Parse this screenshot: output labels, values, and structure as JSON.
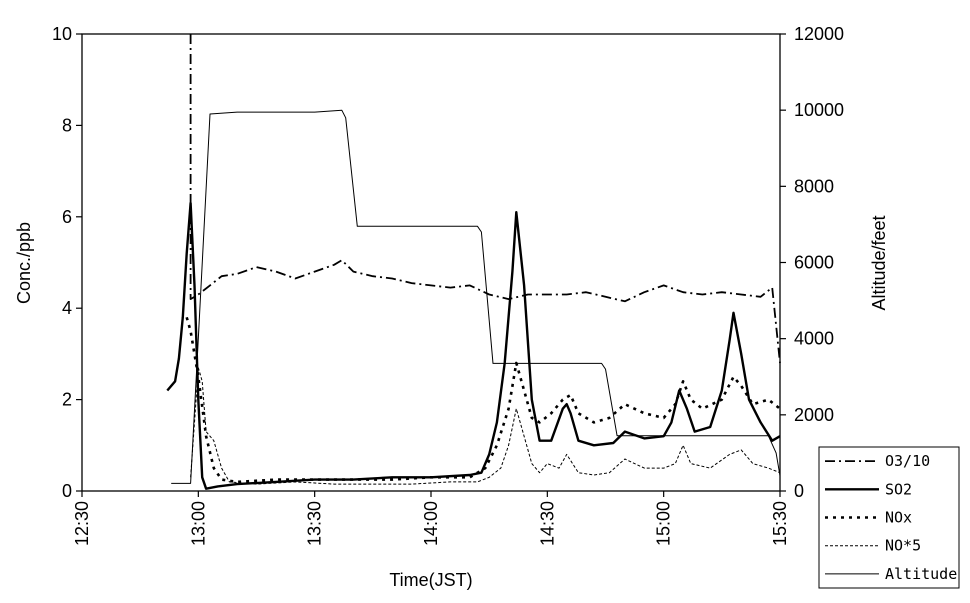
{
  "chart_data": {
    "type": "line",
    "xlabel": "Time(JST)",
    "ylabel_left": "Conc./ppb",
    "ylabel_right": "Altitude/feet",
    "x_range": [
      "12:30",
      "15:30"
    ],
    "y_left_range": [
      0,
      10
    ],
    "y_right_range": [
      0,
      12000
    ],
    "x_ticks": [
      "12:30",
      "13:00",
      "13:30",
      "14:00",
      "14:30",
      "15:00",
      "15:30"
    ],
    "y_left_ticks": [
      "0",
      "2",
      "4",
      "6",
      "8",
      "10"
    ],
    "y_right_ticks": [
      "0",
      "2000",
      "4000",
      "6000",
      "8000",
      "10000",
      "12000"
    ],
    "grid": false,
    "legend_position": "bottom-right outside",
    "series": [
      {
        "name": "O3/10",
        "axis": "left",
        "style": "dash-dot",
        "color": "#000000",
        "points": [
          [
            "12:58",
            10.0
          ],
          [
            "12:58",
            4.2
          ],
          [
            "13:00",
            4.3
          ],
          [
            "13:03",
            4.5
          ],
          [
            "13:06",
            4.7
          ],
          [
            "13:10",
            4.75
          ],
          [
            "13:15",
            4.9
          ],
          [
            "13:20",
            4.8
          ],
          [
            "13:25",
            4.65
          ],
          [
            "13:30",
            4.8
          ],
          [
            "13:35",
            4.95
          ],
          [
            "13:37",
            5.05
          ],
          [
            "13:40",
            4.8
          ],
          [
            "13:45",
            4.7
          ],
          [
            "13:50",
            4.65
          ],
          [
            "13:55",
            4.55
          ],
          [
            "14:00",
            4.5
          ],
          [
            "14:05",
            4.45
          ],
          [
            "14:10",
            4.5
          ],
          [
            "14:15",
            4.3
          ],
          [
            "14:20",
            4.2
          ],
          [
            "14:25",
            4.3
          ],
          [
            "14:30",
            4.3
          ],
          [
            "14:35",
            4.3
          ],
          [
            "14:40",
            4.35
          ],
          [
            "14:45",
            4.25
          ],
          [
            "14:50",
            4.15
          ],
          [
            "14:55",
            4.35
          ],
          [
            "15:00",
            4.5
          ],
          [
            "15:05",
            4.35
          ],
          [
            "15:10",
            4.3
          ],
          [
            "15:15",
            4.35
          ],
          [
            "15:20",
            4.3
          ],
          [
            "15:25",
            4.25
          ],
          [
            "15:28",
            4.45
          ],
          [
            "15:30",
            2.8
          ]
        ]
      },
      {
        "name": "SO2",
        "axis": "left",
        "style": "solid-thick",
        "color": "#000000",
        "points": [
          [
            "12:52",
            2.2
          ],
          [
            "12:54",
            2.4
          ],
          [
            "12:55",
            2.9
          ],
          [
            "12:56",
            3.8
          ],
          [
            "12:57",
            5.2
          ],
          [
            "12:58",
            6.3
          ],
          [
            "12:59",
            4.5
          ],
          [
            "13:00",
            2.0
          ],
          [
            "13:01",
            0.3
          ],
          [
            "13:02",
            0.05
          ],
          [
            "13:05",
            0.1
          ],
          [
            "13:10",
            0.15
          ],
          [
            "13:20",
            0.2
          ],
          [
            "13:30",
            0.25
          ],
          [
            "13:40",
            0.25
          ],
          [
            "13:50",
            0.3
          ],
          [
            "14:00",
            0.3
          ],
          [
            "14:10",
            0.35
          ],
          [
            "14:13",
            0.4
          ],
          [
            "14:15",
            0.8
          ],
          [
            "14:17",
            1.5
          ],
          [
            "14:19",
            2.8
          ],
          [
            "14:21",
            4.8
          ],
          [
            "14:22",
            6.1
          ],
          [
            "14:24",
            4.5
          ],
          [
            "14:26",
            2.0
          ],
          [
            "14:28",
            1.1
          ],
          [
            "14:31",
            1.1
          ],
          [
            "14:34",
            1.8
          ],
          [
            "14:35",
            1.9
          ],
          [
            "14:36",
            1.7
          ],
          [
            "14:38",
            1.1
          ],
          [
            "14:42",
            1.0
          ],
          [
            "14:47",
            1.05
          ],
          [
            "14:50",
            1.3
          ],
          [
            "14:55",
            1.15
          ],
          [
            "15:00",
            1.2
          ],
          [
            "15:02",
            1.5
          ],
          [
            "15:04",
            2.2
          ],
          [
            "15:06",
            1.8
          ],
          [
            "15:08",
            1.3
          ],
          [
            "15:12",
            1.4
          ],
          [
            "15:15",
            2.2
          ],
          [
            "15:17",
            3.3
          ],
          [
            "15:18",
            3.9
          ],
          [
            "15:20",
            3.0
          ],
          [
            "15:22",
            2.0
          ],
          [
            "15:25",
            1.5
          ],
          [
            "15:28",
            1.1
          ],
          [
            "15:30",
            1.2
          ]
        ]
      },
      {
        "name": "NOx",
        "axis": "left",
        "style": "dotted",
        "color": "#000000",
        "points": [
          [
            "12:57",
            3.8
          ],
          [
            "12:58",
            3.5
          ],
          [
            "13:00",
            2.5
          ],
          [
            "13:02",
            1.2
          ],
          [
            "13:04",
            0.5
          ],
          [
            "13:06",
            0.25
          ],
          [
            "13:10",
            0.2
          ],
          [
            "13:20",
            0.25
          ],
          [
            "13:30",
            0.25
          ],
          [
            "13:40",
            0.25
          ],
          [
            "13:50",
            0.25
          ],
          [
            "14:00",
            0.3
          ],
          [
            "14:10",
            0.3
          ],
          [
            "14:14",
            0.5
          ],
          [
            "14:17",
            1.0
          ],
          [
            "14:20",
            1.8
          ],
          [
            "14:22",
            2.8
          ],
          [
            "14:24",
            2.2
          ],
          [
            "14:26",
            1.6
          ],
          [
            "14:28",
            1.5
          ],
          [
            "14:31",
            1.7
          ],
          [
            "14:34",
            2.0
          ],
          [
            "14:36",
            2.1
          ],
          [
            "14:38",
            1.7
          ],
          [
            "14:42",
            1.5
          ],
          [
            "14:46",
            1.6
          ],
          [
            "14:50",
            1.9
          ],
          [
            "14:55",
            1.7
          ],
          [
            "15:00",
            1.6
          ],
          [
            "15:03",
            1.9
          ],
          [
            "15:05",
            2.4
          ],
          [
            "15:07",
            2.0
          ],
          [
            "15:10",
            1.8
          ],
          [
            "15:15",
            2.0
          ],
          [
            "15:18",
            2.5
          ],
          [
            "15:20",
            2.3
          ],
          [
            "15:23",
            1.9
          ],
          [
            "15:27",
            2.0
          ],
          [
            "15:30",
            1.8
          ]
        ]
      },
      {
        "name": "NO*5",
        "axis": "left",
        "style": "fine-dash",
        "color": "#000000",
        "points": [
          [
            "12:58",
            0.3
          ],
          [
            "12:59",
            1.5
          ],
          [
            "13:00",
            2.7
          ],
          [
            "13:01",
            2.4
          ],
          [
            "13:02",
            1.3
          ],
          [
            "13:04",
            1.1
          ],
          [
            "13:06",
            0.5
          ],
          [
            "13:08",
            0.2
          ],
          [
            "13:15",
            0.15
          ],
          [
            "13:25",
            0.2
          ],
          [
            "13:35",
            0.15
          ],
          [
            "13:45",
            0.15
          ],
          [
            "13:55",
            0.15
          ],
          [
            "14:05",
            0.2
          ],
          [
            "14:12",
            0.2
          ],
          [
            "14:15",
            0.3
          ],
          [
            "14:18",
            0.5
          ],
          [
            "14:20",
            1.0
          ],
          [
            "14:22",
            1.8
          ],
          [
            "14:24",
            1.2
          ],
          [
            "14:26",
            0.6
          ],
          [
            "14:28",
            0.4
          ],
          [
            "14:30",
            0.6
          ],
          [
            "14:33",
            0.5
          ],
          [
            "14:35",
            0.8
          ],
          [
            "14:38",
            0.4
          ],
          [
            "14:42",
            0.35
          ],
          [
            "14:46",
            0.4
          ],
          [
            "14:50",
            0.7
          ],
          [
            "14:55",
            0.5
          ],
          [
            "15:00",
            0.5
          ],
          [
            "15:03",
            0.6
          ],
          [
            "15:05",
            1.0
          ],
          [
            "15:07",
            0.6
          ],
          [
            "15:12",
            0.5
          ],
          [
            "15:17",
            0.8
          ],
          [
            "15:20",
            0.9
          ],
          [
            "15:23",
            0.6
          ],
          [
            "15:27",
            0.5
          ],
          [
            "15:30",
            0.4
          ]
        ]
      },
      {
        "name": "Altitude",
        "axis": "right",
        "style": "thin",
        "color": "#000000",
        "points": [
          [
            "12:53",
            200
          ],
          [
            "12:58",
            200
          ],
          [
            "13:00",
            4000
          ],
          [
            "13:03",
            9900
          ],
          [
            "13:10",
            9950
          ],
          [
            "13:20",
            9950
          ],
          [
            "13:30",
            9950
          ],
          [
            "13:37",
            10000
          ],
          [
            "13:38",
            9800
          ],
          [
            "13:41",
            6950
          ],
          [
            "13:50",
            6950
          ],
          [
            "14:00",
            6950
          ],
          [
            "14:12",
            6950
          ],
          [
            "14:13",
            6800
          ],
          [
            "14:16",
            3350
          ],
          [
            "14:30",
            3350
          ],
          [
            "14:44",
            3350
          ],
          [
            "14:45",
            3200
          ],
          [
            "14:48",
            1450
          ],
          [
            "15:00",
            1450
          ],
          [
            "15:15",
            1450
          ],
          [
            "15:27",
            1450
          ],
          [
            "15:29",
            1000
          ],
          [
            "15:30",
            400
          ]
        ]
      }
    ]
  }
}
